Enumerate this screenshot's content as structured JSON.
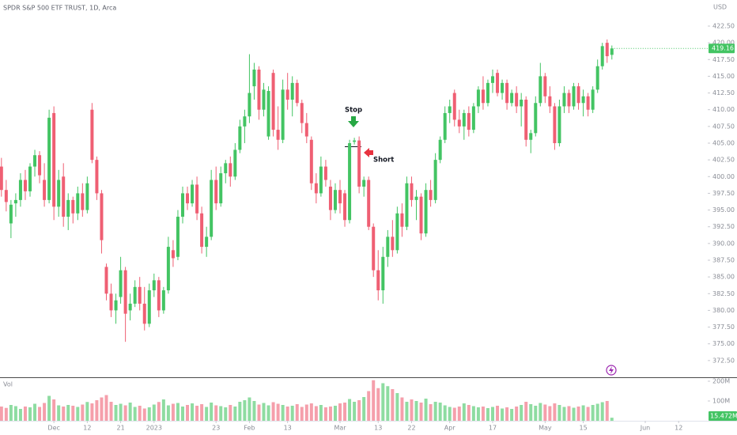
{
  "chart_data": {
    "type": "candlestick",
    "title": "SPDR S&P 500 ETF TRUST, 1D, Arca",
    "currency": "USD",
    "annotations": [
      "Stop",
      "Short"
    ],
    "up_color": "#43c463",
    "down_color": "#ef5f73",
    "open": [
      401.5,
      398.0,
      393.0,
      396.0,
      396.5,
      399.5,
      397.8,
      401.5,
      403.2,
      399.5,
      396.5,
      409.5,
      395.5,
      400.0,
      394.0,
      396.5,
      394.5,
      397.5,
      395.0,
      410.0,
      402.5,
      397.5,
      386.5,
      382.5,
      380.0,
      382.0,
      386.0,
      380.0,
      381.0,
      383.5,
      381.0,
      378.0,
      383.0,
      384.5,
      380.0,
      383.0,
      389.0,
      388.0,
      394.0,
      397.5,
      396.0,
      398.8,
      394.5,
      389.5,
      391.0,
      399.5,
      396.0,
      400.5,
      402.0,
      400.0,
      404.0,
      407.5,
      409.0,
      413.5,
      416.0,
      410.0,
      406.0,
      415.5,
      407.0,
      405.5,
      413.0,
      411.5,
      414.0,
      411.0,
      408.0,
      405.5,
      399.0,
      397.5,
      401.5,
      398.5,
      395.0,
      398.0,
      397.5,
      393.5,
      405.2,
      405.4,
      398.5,
      399.5,
      392.5,
      386.0,
      383.0,
      388.0,
      391.0,
      389.0,
      394.5,
      392.5,
      399.0,
      396.5,
      397.0,
      391.5,
      398.0,
      396.5,
      402.5,
      405.5,
      409.5,
      412.5,
      408.5,
      407.5,
      409.5,
      407.0,
      410.5,
      413.0,
      411.0,
      414.0,
      415.5,
      412.5,
      414.0,
      411.0,
      412.5,
      410.5,
      411.5,
      405.5,
      406.5,
      411.0,
      415.0,
      412.0,
      410.5,
      405.0,
      410.5,
      412.5,
      410.5,
      413.5,
      411.0,
      412.0,
      410.0,
      413.0,
      416.5,
      420.0,
      418.2
    ],
    "high": [
      402.8,
      399.5,
      396.5,
      397.5,
      400.5,
      401.0,
      402.0,
      404.0,
      403.8,
      402.0,
      410.0,
      410.5,
      401.0,
      402.0,
      397.5,
      397.0,
      398.5,
      399.0,
      400.0,
      411.0,
      403.0,
      398.0,
      387.0,
      384.0,
      382.5,
      388.0,
      386.5,
      382.5,
      384.5,
      385.0,
      383.5,
      384.0,
      385.5,
      385.0,
      383.5,
      391.0,
      390.5,
      395.0,
      398.5,
      398.5,
      399.5,
      400.0,
      395.5,
      392.5,
      401.0,
      401.5,
      401.5,
      402.5,
      403.0,
      405.0,
      408.5,
      410.0,
      418.3,
      417.0,
      416.5,
      414.0,
      413.5,
      416.0,
      410.5,
      414.5,
      415.5,
      415.0,
      414.5,
      411.5,
      409.5,
      406.0,
      400.5,
      403.0,
      402.5,
      399.5,
      399.0,
      399.5,
      398.0,
      405.5,
      405.8,
      406.0,
      400.0,
      400.0,
      393.0,
      389.0,
      389.5,
      392.0,
      393.5,
      395.5,
      396.0,
      400.0,
      400.0,
      398.0,
      397.5,
      399.0,
      399.5,
      403.5,
      406.0,
      410.5,
      411.5,
      413.0,
      410.0,
      410.0,
      410.5,
      411.0,
      413.5,
      415.0,
      414.5,
      416.0,
      416.0,
      414.5,
      414.5,
      413.0,
      413.5,
      412.5,
      412.0,
      407.0,
      412.0,
      417.0,
      415.5,
      413.5,
      411.0,
      411.5,
      413.5,
      413.0,
      414.0,
      414.0,
      413.0,
      412.5,
      413.5,
      417.5,
      420.0,
      420.5,
      419.6
    ],
    "low": [
      397.0,
      394.8,
      390.8,
      394.0,
      395.5,
      396.5,
      397.0,
      400.0,
      399.0,
      395.5,
      396.0,
      393.5,
      394.0,
      392.5,
      392.0,
      393.0,
      393.5,
      394.0,
      394.5,
      402.0,
      396.5,
      388.5,
      381.5,
      379.0,
      378.0,
      381.0,
      375.3,
      378.5,
      380.5,
      380.0,
      377.0,
      377.5,
      382.0,
      379.0,
      379.5,
      382.5,
      386.5,
      387.5,
      393.0,
      395.0,
      395.5,
      393.5,
      388.5,
      388.0,
      390.5,
      395.0,
      395.5,
      399.0,
      398.5,
      399.5,
      403.5,
      405.0,
      408.0,
      411.5,
      408.5,
      409.0,
      405.5,
      406.0,
      404.0,
      405.0,
      410.0,
      409.0,
      410.5,
      406.5,
      405.0,
      398.0,
      396.0,
      397.0,
      398.5,
      393.5,
      394.5,
      394.5,
      392.5,
      393.0,
      404.8,
      397.5,
      397.0,
      392.0,
      385.0,
      381.5,
      381.0,
      386.5,
      388.0,
      388.5,
      391.0,
      392.0,
      395.5,
      393.5,
      390.5,
      391.0,
      395.5,
      396.0,
      402.0,
      405.0,
      408.0,
      407.5,
      406.5,
      405.5,
      406.0,
      406.5,
      409.5,
      410.0,
      410.5,
      412.5,
      412.0,
      411.5,
      410.0,
      410.5,
      409.5,
      407.5,
      404.5,
      403.5,
      406.0,
      410.5,
      411.0,
      409.5,
      404.0,
      404.5,
      409.5,
      409.5,
      410.0,
      410.0,
      409.0,
      409.0,
      409.5,
      412.5,
      416.0,
      417.0,
      417.5
    ],
    "close": [
      398.0,
      396.2,
      395.8,
      396.5,
      399.5,
      397.8,
      401.5,
      403.2,
      400.2,
      396.5,
      408.8,
      395.5,
      399.5,
      394.0,
      396.5,
      394.5,
      397.5,
      395.0,
      399.0,
      402.5,
      397.5,
      390.5,
      382.5,
      380.0,
      381.5,
      386.0,
      379.5,
      381.0,
      383.5,
      381.0,
      378.0,
      383.0,
      384.5,
      380.0,
      383.0,
      389.5,
      387.8,
      394.0,
      397.5,
      396.0,
      398.8,
      394.5,
      389.5,
      391.0,
      399.5,
      396.0,
      400.5,
      402.0,
      400.0,
      404.0,
      407.5,
      409.0,
      412.5,
      416.0,
      410.0,
      413.0,
      412.8,
      407.0,
      405.5,
      413.0,
      411.5,
      414.0,
      411.0,
      408.0,
      406.0,
      399.0,
      397.5,
      401.5,
      399.5,
      395.0,
      398.0,
      396.0,
      393.5,
      405.0,
      405.4,
      398.5,
      399.5,
      392.5,
      386.0,
      383.0,
      388.0,
      391.0,
      389.0,
      394.5,
      392.5,
      399.0,
      396.5,
      397.0,
      391.5,
      398.0,
      396.5,
      402.5,
      405.5,
      409.5,
      410.5,
      408.5,
      407.5,
      409.5,
      407.0,
      410.5,
      413.0,
      411.0,
      414.0,
      415.0,
      412.5,
      414.0,
      411.0,
      412.5,
      410.5,
      411.5,
      405.5,
      406.5,
      411.0,
      415.0,
      412.0,
      410.5,
      405.0,
      410.5,
      412.5,
      410.5,
      413.5,
      411.0,
      412.0,
      410.0,
      413.0,
      416.5,
      419.5,
      418.0,
      419.16
    ],
    "xlim": [
      -0.3,
      148.1
    ],
    "xticks": [
      {
        "value": 11,
        "label": "Dec"
      },
      {
        "value": 18,
        "label": "12"
      },
      {
        "value": 25,
        "label": "21"
      },
      {
        "value": 32,
        "label": "2023"
      },
      {
        "value": 45,
        "label": "23"
      },
      {
        "value": 52,
        "label": "Feb"
      },
      {
        "value": 60,
        "label": "13"
      },
      {
        "value": 71,
        "label": "Mar"
      },
      {
        "value": 79,
        "label": "13"
      },
      {
        "value": 86,
        "label": "22"
      },
      {
        "value": 94,
        "label": "Apr"
      },
      {
        "value": 103,
        "label": "17"
      },
      {
        "value": 114,
        "label": "May"
      },
      {
        "value": 122,
        "label": "15"
      },
      {
        "value": 135,
        "label": "Jun"
      },
      {
        "value": 142,
        "label": "12"
      }
    ],
    "ylim": [
      370,
      426.4
    ],
    "yticks": [
      {
        "value": 372.5,
        "label": "372.50"
      },
      {
        "value": 375,
        "label": "375.00"
      },
      {
        "value": 377.5,
        "label": "377.50"
      },
      {
        "value": 380,
        "label": "380.00"
      },
      {
        "value": 382.5,
        "label": "382.50"
      },
      {
        "value": 385,
        "label": "385.00"
      },
      {
        "value": 387.5,
        "label": "387.50"
      },
      {
        "value": 390,
        "label": "390.00"
      },
      {
        "value": 392.5,
        "label": "392.50"
      },
      {
        "value": 395,
        "label": "395.00"
      },
      {
        "value": 397.5,
        "label": "397.50"
      },
      {
        "value": 400,
        "label": "400.00"
      },
      {
        "value": 402.5,
        "label": "402.50"
      },
      {
        "value": 405,
        "label": "405.00"
      },
      {
        "value": 407.5,
        "label": "407.50"
      },
      {
        "value": 410,
        "label": "410.00"
      },
      {
        "value": 412.5,
        "label": "412.50"
      },
      {
        "value": 415,
        "label": "415.00"
      },
      {
        "value": 417.5,
        "label": "417.50"
      },
      {
        "value": 420,
        "label": "420.00"
      },
      {
        "value": 422.5,
        "label": "422.50"
      }
    ],
    "volume": {
      "name": "Vol",
      "values": [
        72,
        65,
        80,
        74,
        60,
        72,
        68,
        86,
        70,
        90,
        126,
        108,
        78,
        72,
        80,
        76,
        70,
        82,
        95,
        88,
        104,
        118,
        130,
        96,
        80,
        86,
        78,
        92,
        70,
        76,
        62,
        68,
        82,
        95,
        108,
        78,
        86,
        90,
        72,
        80,
        88,
        76,
        84,
        70,
        92,
        78,
        74,
        68,
        80,
        72,
        96,
        104,
        118,
        100,
        82,
        90,
        78,
        94,
        86,
        80,
        72,
        76,
        84,
        70,
        82,
        88,
        74,
        80,
        68,
        72,
        76,
        88,
        92,
        110,
        96,
        104,
        120,
        150,
        205,
        165,
        190,
        175,
        160,
        140,
        118,
        96,
        108,
        100,
        92,
        112,
        84,
        96,
        92,
        78,
        70,
        66,
        72,
        88,
        80,
        74,
        68,
        72,
        64,
        70,
        76,
        62,
        68,
        60,
        72,
        80,
        96,
        84,
        76,
        90,
        82,
        74,
        88,
        80,
        70,
        74,
        66,
        72,
        78,
        70,
        80,
        86,
        94,
        100,
        15.472
      ],
      "value_labels": {
        "128": "15.472M"
      },
      "ylim": [
        0,
        216
      ],
      "yticks": [
        {
          "value": 100,
          "label": "100M"
        },
        {
          "value": 200,
          "label": "200M"
        }
      ]
    }
  }
}
